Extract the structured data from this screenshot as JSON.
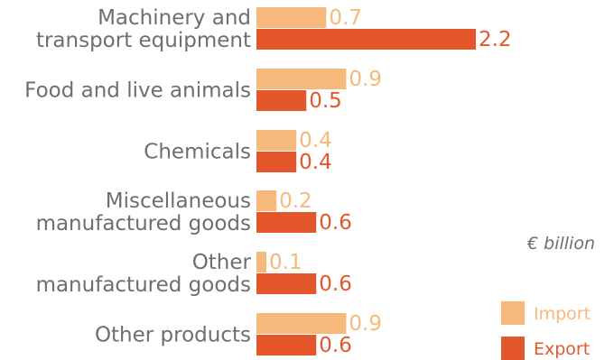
{
  "chart_data": {
    "type": "bar",
    "orientation": "horizontal",
    "categories": [
      [
        "Machinery and",
        "transport equipment"
      ],
      [
        "Food and live animals"
      ],
      [
        "Chemicals"
      ],
      [
        "Miscellaneous",
        "manufactured goods"
      ],
      [
        "Other",
        "manufactured goods"
      ],
      [
        "Other products"
      ]
    ],
    "series": [
      {
        "name": "Import",
        "color": "#f7b97b",
        "values": [
          0.7,
          0.9,
          0.4,
          0.2,
          0.1,
          0.9
        ],
        "labels": [
          "0.7",
          "0.9",
          "0.4",
          "0.2",
          "0.1",
          "0.9"
        ]
      },
      {
        "name": "Export",
        "color": "#e4572b",
        "values": [
          2.2,
          0.5,
          0.4,
          0.6,
          0.6,
          0.6
        ],
        "labels": [
          "2.2",
          "0.5",
          "0.4",
          "0.6",
          "0.6",
          "0.6"
        ]
      }
    ],
    "unit": "€ billion",
    "legend_position": "bottom-right",
    "xlim": [
      0,
      2.2
    ],
    "grid": false
  }
}
